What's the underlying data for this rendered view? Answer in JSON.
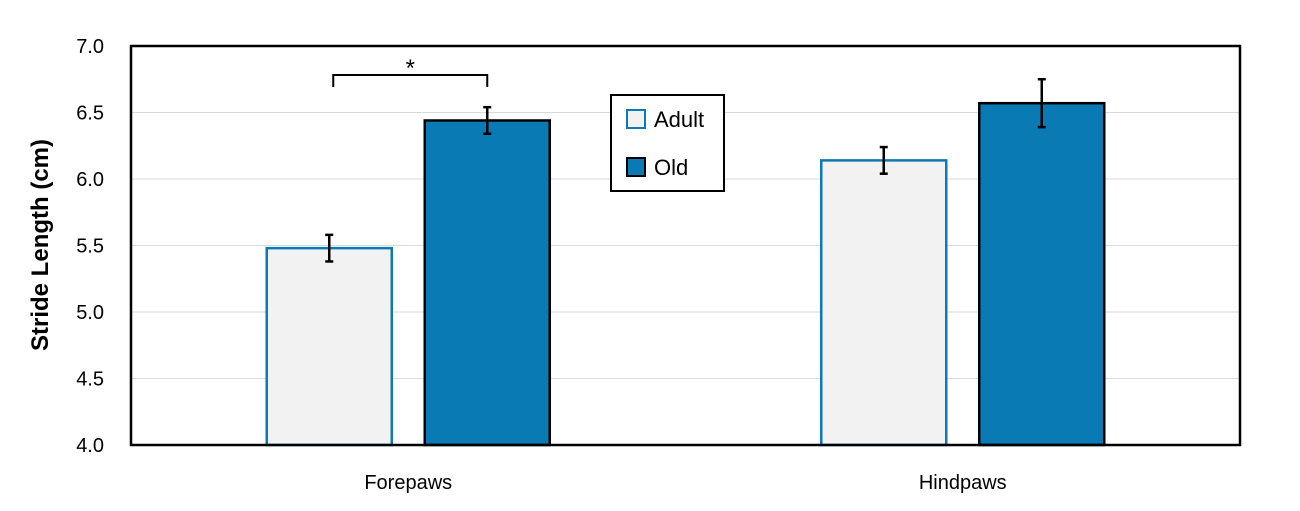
{
  "chart_data": {
    "type": "bar",
    "categories": [
      "Forepaws",
      "Hindpaws"
    ],
    "series": [
      {
        "name": "Adult",
        "values": [
          5.48,
          6.14
        ],
        "errors": [
          0.1,
          0.1
        ],
        "fill": "#f2f2f2",
        "stroke": "#0a7ab5"
      },
      {
        "name": "Old",
        "values": [
          6.44,
          6.57
        ],
        "errors": [
          0.1,
          0.18
        ],
        "fill": "#0a7ab5",
        "stroke": "#000000"
      }
    ],
    "ylabel": "Stride Length (cm)",
    "ylim": [
      4.0,
      7.0
    ],
    "yticks": [
      "4.0",
      "4.5",
      "5.0",
      "5.5",
      "6.0",
      "6.5",
      "7.0"
    ],
    "ytick_values": [
      4.0,
      4.5,
      5.0,
      5.5,
      6.0,
      6.5,
      7.0
    ],
    "grid": true,
    "legend_position": "top-center",
    "annotations": [
      {
        "text": "*",
        "category": "Forepaws",
        "between": [
          "Adult",
          "Old"
        ]
      }
    ]
  }
}
